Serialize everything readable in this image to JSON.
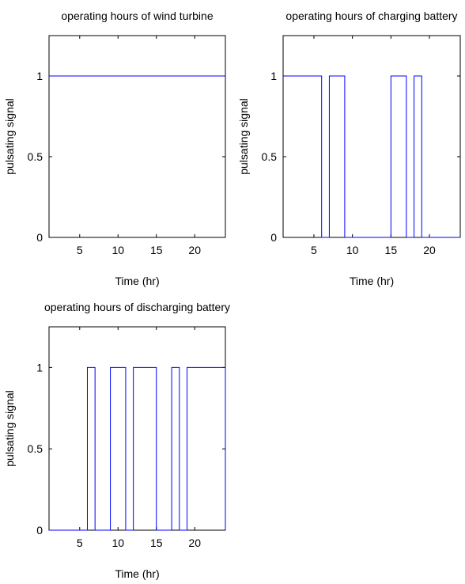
{
  "chart_data": [
    {
      "type": "line",
      "step": true,
      "title": "operating hours of wind turbine",
      "xlabel": "Time (hr)",
      "ylabel": "pulsating signal",
      "xlim": [
        1,
        24
      ],
      "ylim": [
        0,
        1.25
      ],
      "xticks": [
        "5",
        "10",
        "15",
        "20"
      ],
      "yticks": [
        "0",
        "0.5",
        "1"
      ],
      "color": "#0000ff",
      "x": [
        1,
        24
      ],
      "y": [
        1,
        1
      ]
    },
    {
      "type": "line",
      "step": true,
      "title": "operating hours of charging battery",
      "xlabel": "Time (hr)",
      "ylabel": "pulsating signal",
      "xlim": [
        1,
        24
      ],
      "ylim": [
        0,
        1.25
      ],
      "xticks": [
        "5",
        "10",
        "15",
        "20"
      ],
      "yticks": [
        "0",
        "0.5",
        "1"
      ],
      "color": "#0000ff",
      "x": [
        1,
        6,
        6,
        7,
        7,
        9,
        9,
        15,
        15,
        17,
        17,
        18,
        18,
        19,
        19,
        24
      ],
      "y": [
        1,
        1,
        0,
        0,
        1,
        1,
        0,
        0,
        1,
        1,
        0,
        0,
        1,
        1,
        0,
        0
      ]
    },
    {
      "type": "line",
      "step": true,
      "title": "operating hours of discharging battery",
      "xlabel": "Time (hr)",
      "ylabel": "pulsating signal",
      "xlim": [
        1,
        24
      ],
      "ylim": [
        0,
        1.25
      ],
      "xticks": [
        "5",
        "10",
        "15",
        "20"
      ],
      "yticks": [
        "0",
        "0.5",
        "1"
      ],
      "color": "#0000ff",
      "x": [
        1,
        6,
        6,
        7,
        7,
        9,
        9,
        11,
        11,
        12,
        12,
        15,
        15,
        17,
        17,
        18,
        18,
        19,
        19,
        24,
        24
      ],
      "y": [
        0,
        0,
        1,
        1,
        0,
        0,
        1,
        1,
        0,
        0,
        1,
        1,
        0,
        0,
        1,
        1,
        0,
        0,
        1,
        1,
        0
      ]
    }
  ]
}
